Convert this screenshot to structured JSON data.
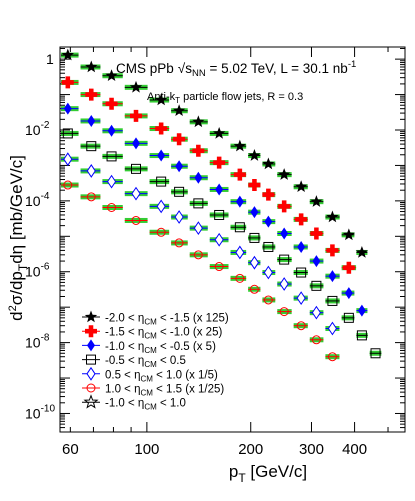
{
  "chart_data": {
    "type": "scatter",
    "title": "CMS pPb √s_NN = 5.02 TeV,  L = 30.1 nb⁻¹",
    "title_parts": {
      "experiment": "CMS pPb",
      "sqrt": "√",
      "s": "s",
      "s_sub": "NN",
      "energy": " = 5.02 TeV,  L = 30.1 nb",
      "lumi_sup": "-1"
    },
    "subtitle_parts": {
      "pre": "Anti-k",
      "sub": "T",
      "post": " particle flow jets, R = 0.3"
    },
    "xlabel_parts": {
      "main": "p",
      "sub": "T",
      "post": " [GeV/c]"
    },
    "ylabel_parts": {
      "a": "d",
      "sup": "2",
      "b": "σ/dp",
      "sub": "T",
      "c": "dη [mb/GeV/c]"
    },
    "xscale": "log",
    "yscale": "log",
    "xlim": [
      56,
      560
    ],
    "ylim": [
      3e-11,
      2.2
    ],
    "x_tick_labels": [
      {
        "value": 60,
        "label": "60"
      },
      {
        "value": 100,
        "label": "100"
      },
      {
        "value": 200,
        "label": "200"
      },
      {
        "value": 300,
        "label": "300"
      },
      {
        "value": 400,
        "label": "400"
      }
    ],
    "y_tick_labels": [
      {
        "value": 1,
        "base": "1",
        "exp": ""
      },
      {
        "value": 0.01,
        "base": "10",
        "exp": "-2"
      },
      {
        "value": 0.0001,
        "base": "10",
        "exp": "-4"
      },
      {
        "value": 1e-06,
        "base": "10",
        "exp": "-6"
      },
      {
        "value": 1e-08,
        "base": "10",
        "exp": "-8"
      },
      {
        "value": 1e-10,
        "base": "10",
        "exp": "-10"
      }
    ],
    "legend_position": "bottom-left",
    "series": [
      {
        "id": "s1",
        "legend": {
          "pre": "-2.0 < η",
          "sub": "CM",
          "post": " < -1.5 (x 125)"
        },
        "marker": "star-filled",
        "color": "#000000",
        "x": [
          59,
          69,
          79,
          93,
          110,
          124,
          141,
          162,
          186,
          205,
          225,
          250,
          280,
          310,
          345,
          385,
          420
        ],
        "y": [
          1.3,
          0.6,
          0.34,
          0.16,
          0.07,
          0.035,
          0.017,
          0.008,
          0.0035,
          0.0019,
          0.0011,
          0.00055,
          0.00025,
          9.5e-05,
          3.5e-05,
          1.1e-05,
          3.5e-06
        ]
      },
      {
        "id": "s2",
        "legend": {
          "pre": "-1.5 < η",
          "sub": "CM",
          "post": " < -1.0 (x 25)"
        },
        "marker": "cross-filled",
        "color": "#ff0000",
        "x": [
          59,
          69,
          79,
          93,
          110,
          124,
          141,
          162,
          186,
          205,
          225,
          250,
          280,
          310,
          345,
          385
        ],
        "y": [
          0.22,
          0.1,
          0.055,
          0.025,
          0.011,
          0.0055,
          0.0026,
          0.0012,
          0.00055,
          0.00028,
          0.00015,
          7e-05,
          3e-05,
          1.2e-05,
          4e-06,
          1.3e-06
        ]
      },
      {
        "id": "s3",
        "legend": {
          "pre": "-1.0 < η",
          "sub": "CM",
          "post": " < -0.5 (x 5)"
        },
        "marker": "diamond-filled",
        "color": "#0000ff",
        "x": [
          59,
          69,
          79,
          93,
          110,
          124,
          141,
          162,
          186,
          205,
          225,
          250,
          280,
          310,
          345,
          385,
          420
        ],
        "y": [
          0.04,
          0.018,
          0.0095,
          0.0042,
          0.0019,
          0.00095,
          0.00045,
          0.00021,
          9.5e-05,
          4.8e-05,
          2.6e-05,
          1.2e-05,
          5e-06,
          2e-06,
          7.5e-07,
          2.5e-07,
          8e-08
        ]
      },
      {
        "id": "s4",
        "legend": {
          "pre": "-0.5 < η",
          "sub": "CM",
          "post": " < 0.5"
        },
        "marker": "square-open",
        "color": "#000000",
        "x": [
          59,
          69,
          79,
          93,
          110,
          124,
          141,
          162,
          186,
          205,
          225,
          250,
          280,
          310,
          345,
          385,
          420,
          460
        ],
        "y": [
          0.008,
          0.0035,
          0.0018,
          0.0008,
          0.00035,
          0.00018,
          8.5e-05,
          4e-05,
          1.8e-05,
          9e-06,
          5e-06,
          2.2e-06,
          9.5e-07,
          4e-07,
          1.5e-07,
          5e-08,
          1.6e-08,
          5e-09
        ]
      },
      {
        "id": "s5",
        "legend": {
          "pre": "0.5 < η",
          "sub": "CM",
          "post": " < 1.0 (x 1/5)"
        },
        "marker": "diamond-open",
        "color": "#0000ff",
        "x": [
          59,
          69,
          79,
          93,
          110,
          124,
          141,
          162,
          186,
          205,
          225,
          250,
          280,
          310,
          345
        ],
        "y": [
          0.0015,
          0.0007,
          0.00035,
          0.00016,
          7e-05,
          3.5e-05,
          1.7e-05,
          8e-06,
          3.5e-06,
          1.8e-06,
          9.5e-07,
          4.5e-07,
          1.8e-07,
          7e-08,
          2.5e-08
        ]
      },
      {
        "id": "s6",
        "legend": {
          "pre": "1.0 < η",
          "sub": "CM",
          "post": " < 1.5 (x 1/25)"
        },
        "marker": "circle-open",
        "color": "#ff0000",
        "x": [
          59,
          69,
          79,
          93,
          110,
          124,
          141,
          162,
          186,
          205,
          225,
          250,
          280,
          310,
          345
        ],
        "y": [
          0.00028,
          0.00013,
          6.5e-05,
          2.8e-05,
          1.3e-05,
          6.5e-06,
          3e-06,
          1.4e-06,
          6.5e-07,
          3.2e-07,
          1.6e-07,
          7.5e-08,
          3e-08,
          1.2e-08,
          4e-09
        ]
      },
      {
        "id": "s7",
        "legend": {
          "pre": "-1.0 < η",
          "sub": "CM",
          "post": " < 1.0"
        },
        "marker": "star-open",
        "color": "#000000",
        "x": [],
        "y": []
      }
    ],
    "band_color": "#33cc33"
  }
}
